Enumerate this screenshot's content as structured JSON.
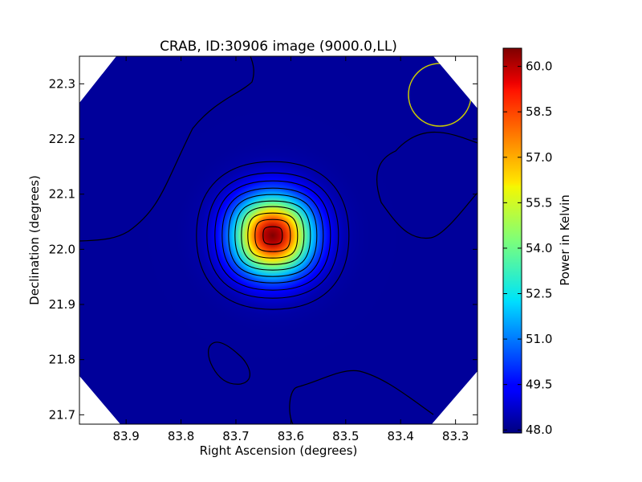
{
  "chart_data": {
    "type": "heatmap",
    "title": "CRAB, ID:30906 image (9000.0,LL)",
    "xlabel": "Right Ascension (degrees)",
    "ylabel": "Declination (degrees)",
    "xlim": [
      83.985,
      83.26
    ],
    "ylim": [
      21.683,
      22.35
    ],
    "x_ticks": [
      83.9,
      83.8,
      83.7,
      83.6,
      83.5,
      83.4,
      83.3
    ],
    "x_tick_labels": [
      "83.9",
      "83.8",
      "83.7",
      "83.6",
      "83.5",
      "83.4",
      "83.3"
    ],
    "y_ticks": [
      21.7,
      21.8,
      21.9,
      22.0,
      22.1,
      22.2,
      22.3
    ],
    "y_tick_labels": [
      "21.7",
      "21.8",
      "21.9",
      "22.0",
      "22.1",
      "22.2",
      "22.3"
    ],
    "colorbar": {
      "label": "Power in Kelvin",
      "vmin": 47.9,
      "vmax": 60.6,
      "ticks": [
        48.0,
        49.5,
        51.0,
        52.5,
        54.0,
        55.5,
        57.0,
        58.5,
        60.0
      ],
      "tick_labels": [
        "48.0",
        "49.5",
        "51.0",
        "52.5",
        "54.0",
        "55.5",
        "57.0",
        "58.5",
        "60.0"
      ],
      "colormap": "jet"
    },
    "peak": {
      "ra": 83.633,
      "dec": 22.025,
      "value": 60.6
    },
    "background_level": 48.2,
    "beam_circle": {
      "ra": 83.327,
      "dec": 22.282,
      "radius_deg": 0.056,
      "color": "#cccc00"
    },
    "grid": false
  }
}
